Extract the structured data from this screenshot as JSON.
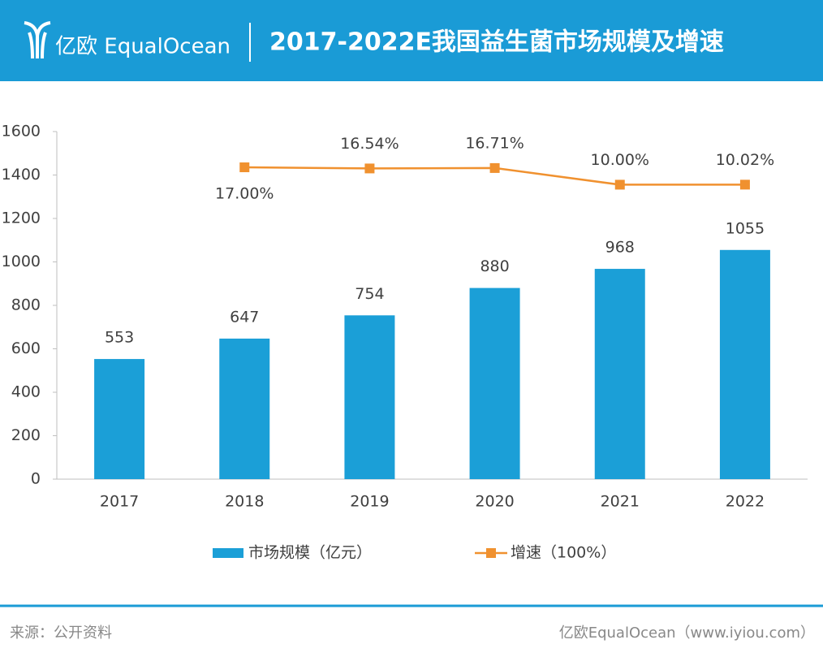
{
  "header": {
    "logo": "亿欧 EqualOcean"
  },
  "chart_data": {
    "type": "bar_line",
    "title": "2017-2022E我国益生菌市场规模及增速",
    "categories": [
      "2017",
      "2018",
      "2019",
      "2020",
      "2021",
      "2022"
    ],
    "series": [
      {
        "name": "市场规模（亿元）",
        "color": "#1b9fd7",
        "values": [
          553,
          647,
          754,
          880,
          968,
          1055
        ]
      },
      {
        "name": "增速（100%）",
        "color": "#f0912f",
        "axis": "y2",
        "values": [
          null,
          17.0,
          16.54,
          16.71,
          10.0,
          10.02
        ],
        "value_labels": [
          null,
          "17.00%",
          "16.54%",
          "16.71%",
          "10.00%",
          "10.02%"
        ]
      }
    ],
    "ylim": [
      0,
      1600
    ],
    "yticks": [
      0,
      200,
      400,
      600,
      800,
      1000,
      1200,
      1400,
      1600
    ],
    "y2lim": [
      -108.6,
      31.4
    ],
    "legend": "bottom"
  },
  "footer": {
    "source": "来源：公开资料",
    "credit": "亿欧EqualOcean（www.iyiou.com）"
  }
}
